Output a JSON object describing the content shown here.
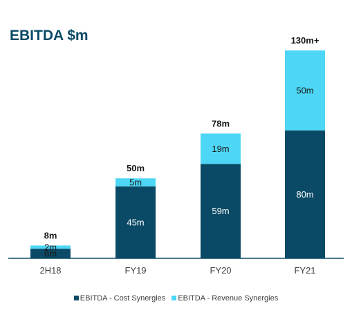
{
  "colors": {
    "cost": "#0b4a66",
    "revenue": "#4dd6f5",
    "title": "#0a4a66",
    "axis": "#0b4a66",
    "total_label": "#1a1a1a",
    "inner_label_light": "#ffffff",
    "inner_label_dark": "#1a1a1a",
    "tick_label": "#404040"
  },
  "chart_data": {
    "type": "bar",
    "stacked": true,
    "title": "EBITDA $m",
    "xlabel": "",
    "ylabel": "",
    "ylim": [
      0,
      130
    ],
    "grid": false,
    "legend_position": "bottom",
    "categories": [
      "2H18",
      "FY19",
      "FY20",
      "FY21"
    ],
    "series": [
      {
        "name": "EBITDA - Cost Synergies",
        "values": [
          6,
          45,
          59,
          80
        ],
        "labels": [
          "6m",
          "45m",
          "59m",
          "80m"
        ]
      },
      {
        "name": "EBITDA - Revenue Synergies",
        "values": [
          2,
          5,
          19,
          50
        ],
        "labels": [
          "2m",
          "5m",
          "19m",
          "50m"
        ]
      }
    ],
    "totals": [
      "8m",
      "50m",
      "78m",
      "130m+"
    ]
  }
}
